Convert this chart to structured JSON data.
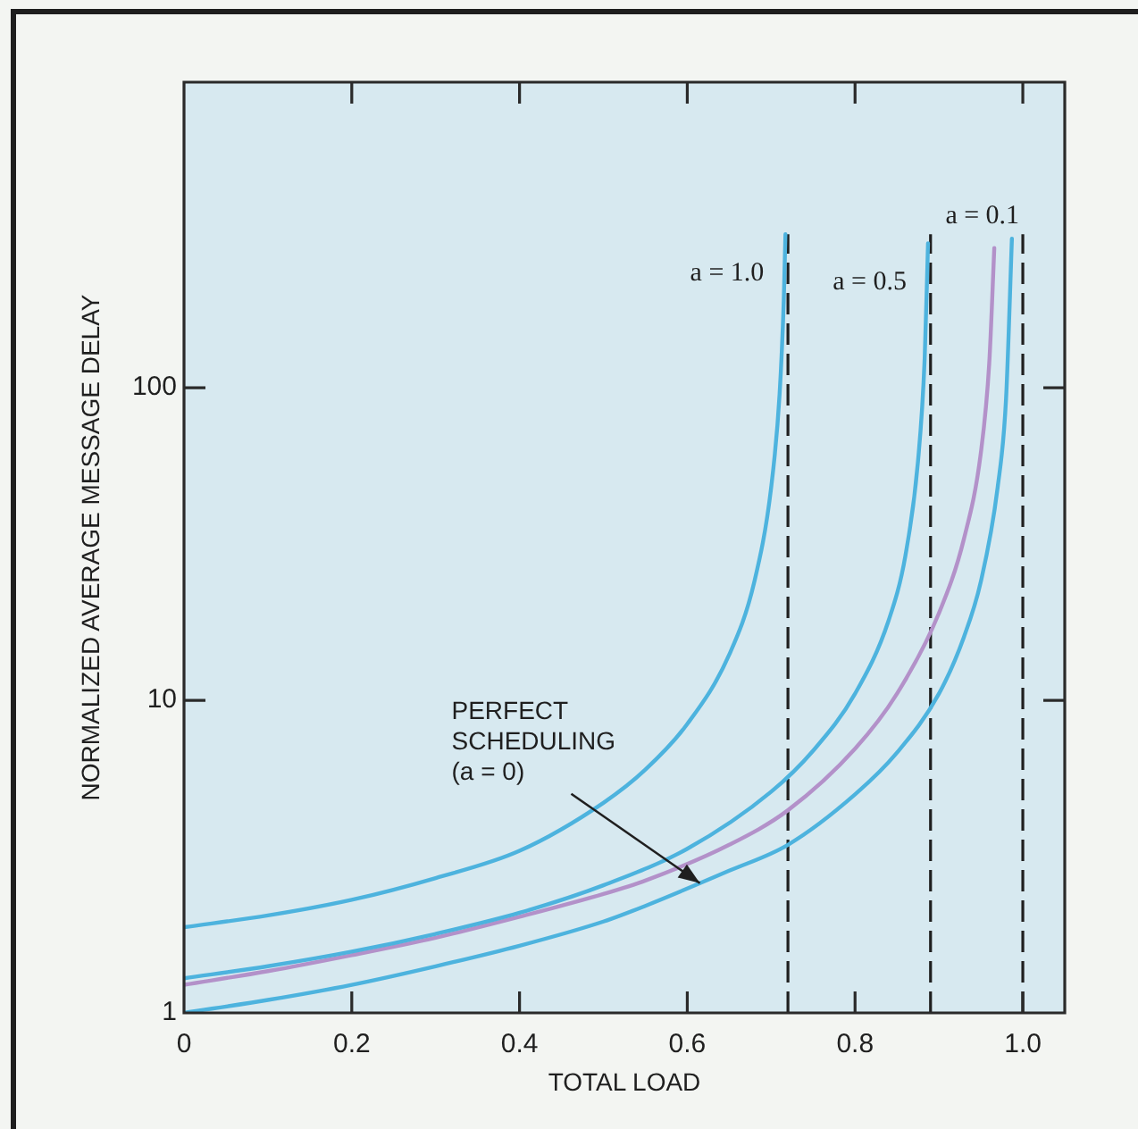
{
  "chart_data": {
    "type": "line",
    "xlabel": "TOTAL LOAD",
    "ylabel": "NORMALIZED AVERAGE MESSAGE DELAY",
    "xlim": [
      0,
      1.05
    ],
    "ylim": [
      1,
      950
    ],
    "xticks": [
      0,
      0.2,
      0.4,
      0.6,
      0.8,
      {
        "value": 1,
        "label": "1.0"
      }
    ],
    "yticks": [
      1,
      10,
      100
    ],
    "log": true,
    "series": [
      {
        "name": "a = 1.0",
        "color": "#4db3de",
        "x": [
          0,
          0.1,
          0.2,
          0.3,
          0.4,
          0.5,
          0.55,
          0.6,
          0.65,
          0.68,
          0.7,
          0.71,
          0.715,
          0.717
        ],
        "values": [
          1.88,
          2.05,
          2.3,
          2.7,
          3.3,
          4.7,
          6.0,
          8.4,
          14,
          24,
          48,
          95,
          190,
          310
        ]
      },
      {
        "name": "a = 0.5",
        "color": "#4db3de",
        "x": [
          0,
          0.1,
          0.2,
          0.3,
          0.4,
          0.5,
          0.6,
          0.7,
          0.75,
          0.8,
          0.84,
          0.86,
          0.875,
          0.883,
          0.887
        ],
        "values": [
          1.29,
          1.41,
          1.57,
          1.79,
          2.09,
          2.56,
          3.35,
          5.1,
          6.9,
          10.5,
          18,
          29,
          58,
          124,
          290
        ]
      },
      {
        "name": "a = 0.1",
        "color": "#b391c9",
        "x": [
          0,
          0.1,
          0.2,
          0.3,
          0.4,
          0.5,
          0.55,
          0.65,
          0.72,
          0.8,
          0.85,
          0.9,
          0.93,
          0.95,
          0.96,
          0.966
        ],
        "values": [
          1.23,
          1.36,
          1.53,
          1.74,
          2.03,
          2.4,
          2.65,
          3.45,
          4.45,
          7.0,
          10.5,
          19,
          33,
          62,
          120,
          280
        ]
      },
      {
        "color": "#4db3de",
        "x": [
          0,
          0.1,
          0.2,
          0.3,
          0.4,
          0.5,
          0.55,
          0.65,
          0.72,
          0.8,
          0.85,
          0.9,
          0.93,
          0.95,
          0.97,
          0.98,
          0.987
        ],
        "values": [
          1.0,
          1.1,
          1.23,
          1.41,
          1.64,
          1.96,
          2.2,
          2.85,
          3.45,
          5.0,
          6.8,
          10.5,
          16,
          24,
          48,
          92,
          300
        ]
      }
    ],
    "ref_lines": [
      {
        "axis": "x",
        "value": 0.72,
        "color": "#1f1f1f",
        "line_style": "dashed"
      },
      {
        "axis": "x",
        "value": 0.89,
        "color": "#1f1f1f",
        "line_style": "dashed"
      },
      {
        "axis": "x",
        "value": 1.0,
        "color": "#1f1f1f",
        "line_style": "dashed"
      }
    ],
    "annotations": [
      {
        "text": "PERFECT SCHEDULING (a = 0)",
        "x": 0.615,
        "y": 2.6
      }
    ]
  }
}
